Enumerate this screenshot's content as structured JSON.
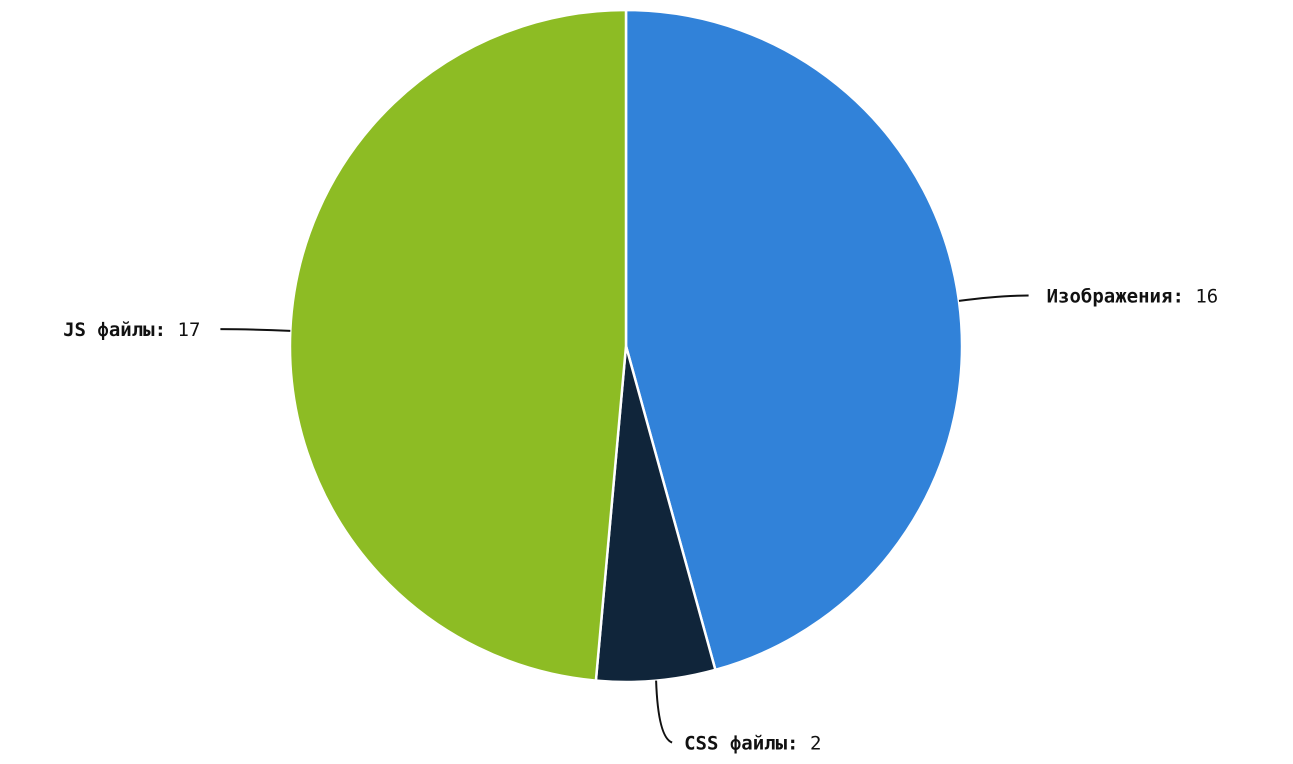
{
  "chart_data": {
    "type": "pie",
    "slices": [
      {
        "label": "Изображения",
        "value": 16,
        "color": "#3182d9"
      },
      {
        "label": "CSS файлы",
        "value": 2,
        "color": "#10253a"
      },
      {
        "label": "JS файлы",
        "value": 17,
        "color": "#8dbc24"
      }
    ],
    "start_angle_deg": 0,
    "direction": "clockwise",
    "label_separator": ":"
  }
}
